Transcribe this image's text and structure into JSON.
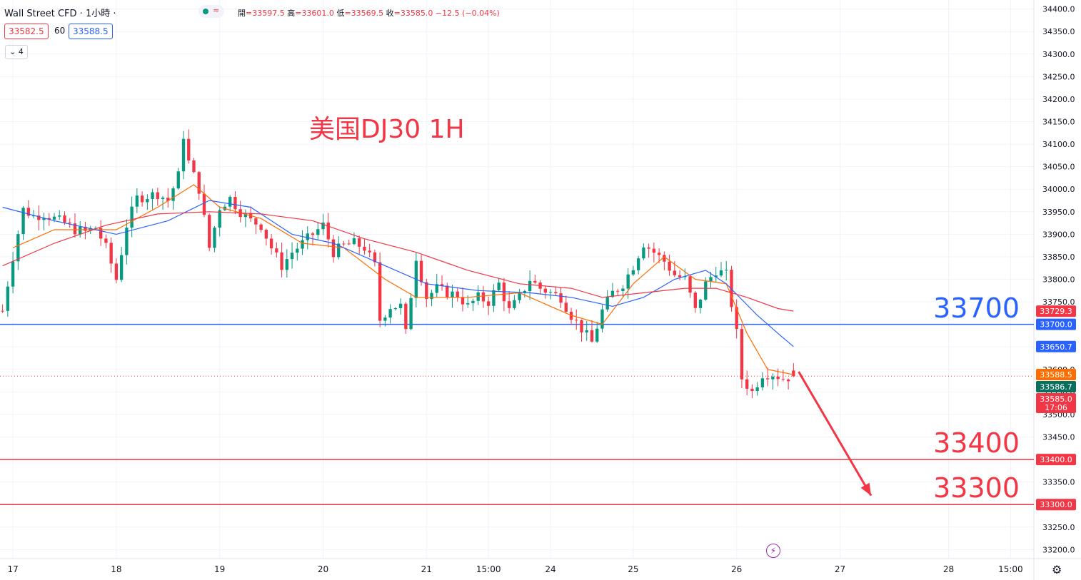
{
  "header": {
    "title": "Wall Street CFD · 1小時 ·",
    "status_glyph": "≈",
    "ohlc": [
      {
        "label": "開",
        "value": "=33597.5"
      },
      {
        "label": "高",
        "value": "=33601.0"
      },
      {
        "label": "低",
        "value": "=33569.5"
      },
      {
        "label": "收",
        "value": "=33585.0"
      }
    ],
    "change": "−12.5 (−0.04%)",
    "sell_price": "33582.5",
    "spread": "60",
    "buy_price": "33588.5",
    "indicator_count": "4"
  },
  "annotation": "美国DJ30 1H",
  "levels": [
    {
      "text": "33700",
      "value": 33700,
      "color": "#2962ff"
    },
    {
      "text": "33400",
      "value": 33400,
      "color": "#f23645"
    },
    {
      "text": "33300",
      "value": 33300,
      "color": "#f23645"
    }
  ],
  "chart_data": {
    "type": "candlestick",
    "symbol": "Wall Street CFD",
    "timeframe": "1小時",
    "ylim": [
      33180,
      34420
    ],
    "y_ticks": [
      33200,
      33250,
      33300,
      33350,
      33400,
      33450,
      33500,
      33550,
      33600,
      33650,
      33700,
      33750,
      33800,
      33850,
      33900,
      33950,
      34000,
      34050,
      34100,
      34150,
      34200,
      34250,
      34300,
      34350,
      34400
    ],
    "x_ticks": [
      {
        "label": "17",
        "t": 2
      },
      {
        "label": "18",
        "t": 22
      },
      {
        "label": "19",
        "t": 42
      },
      {
        "label": "20",
        "t": 62
      },
      {
        "label": "21",
        "t": 82
      },
      {
        "label": "15:00",
        "t": 94
      },
      {
        "label": "24",
        "t": 106
      },
      {
        "label": "25",
        "t": 122
      },
      {
        "label": "26",
        "t": 142
      },
      {
        "label": "27",
        "t": 162
      },
      {
        "label": "28",
        "t": 183
      },
      {
        "label": "15:00",
        "t": 195
      }
    ],
    "price_path": [
      [
        0,
        33730
      ],
      [
        2,
        33850
      ],
      [
        4,
        33955
      ],
      [
        6,
        33940
      ],
      [
        8,
        33945
      ],
      [
        10,
        33935
      ],
      [
        12,
        33925
      ],
      [
        14,
        33910
      ],
      [
        16,
        33905
      ],
      [
        18,
        33915
      ],
      [
        20,
        33870
      ],
      [
        22,
        33800
      ],
      [
        24,
        33920
      ],
      [
        26,
        33980
      ],
      [
        28,
        33985
      ],
      [
        30,
        33990
      ],
      [
        32,
        33975
      ],
      [
        34,
        34030
      ],
      [
        35,
        34120
      ],
      [
        36,
        34060
      ],
      [
        38,
        34000
      ],
      [
        40,
        33870
      ],
      [
        42,
        33960
      ],
      [
        44,
        33980
      ],
      [
        46,
        33950
      ],
      [
        48,
        33930
      ],
      [
        50,
        33920
      ],
      [
        52,
        33870
      ],
      [
        54,
        33830
      ],
      [
        56,
        33860
      ],
      [
        58,
        33880
      ],
      [
        60,
        33900
      ],
      [
        62,
        33920
      ],
      [
        64,
        33860
      ],
      [
        66,
        33875
      ],
      [
        68,
        33880
      ],
      [
        70,
        33870
      ],
      [
        72,
        33830
      ],
      [
        73,
        33710
      ],
      [
        75,
        33740
      ],
      [
        77,
        33740
      ],
      [
        78,
        33680
      ],
      [
        80,
        33850
      ],
      [
        82,
        33760
      ],
      [
        84,
        33780
      ],
      [
        86,
        33770
      ],
      [
        88,
        33765
      ],
      [
        90,
        33740
      ],
      [
        92,
        33760
      ],
      [
        94,
        33750
      ],
      [
        96,
        33790
      ],
      [
        98,
        33730
      ],
      [
        100,
        33760
      ],
      [
        102,
        33800
      ],
      [
        104,
        33780
      ],
      [
        106,
        33770
      ],
      [
        108,
        33760
      ],
      [
        110,
        33720
      ],
      [
        112,
        33690
      ],
      [
        114,
        33660
      ],
      [
        116,
        33730
      ],
      [
        118,
        33770
      ],
      [
        120,
        33790
      ],
      [
        122,
        33830
      ],
      [
        124,
        33880
      ],
      [
        126,
        33860
      ],
      [
        128,
        33840
      ],
      [
        130,
        33810
      ],
      [
        132,
        33800
      ],
      [
        134,
        33730
      ],
      [
        136,
        33790
      ],
      [
        138,
        33820
      ],
      [
        140,
        33810
      ],
      [
        142,
        33680
      ],
      [
        143,
        33580
      ],
      [
        145,
        33550
      ],
      [
        147,
        33590
      ],
      [
        149,
        33590
      ],
      [
        151,
        33580
      ],
      [
        153,
        33585
      ]
    ],
    "series": [
      {
        "name": "",
        "color": "#ff6d00",
        "values": [
          [
            2,
            33870
          ],
          [
            10,
            33910
          ],
          [
            22,
            33910
          ],
          [
            30,
            33960
          ],
          [
            37,
            34010
          ],
          [
            42,
            33960
          ],
          [
            50,
            33935
          ],
          [
            58,
            33880
          ],
          [
            66,
            33870
          ],
          [
            74,
            33800
          ],
          [
            80,
            33760
          ],
          [
            90,
            33760
          ],
          [
            100,
            33770
          ],
          [
            110,
            33720
          ],
          [
            116,
            33700
          ],
          [
            122,
            33790
          ],
          [
            128,
            33850
          ],
          [
            134,
            33800
          ],
          [
            140,
            33790
          ],
          [
            144,
            33680
          ],
          [
            148,
            33600
          ],
          [
            153,
            33588.5
          ]
        ]
      },
      {
        "name": "",
        "color": "#2962ff",
        "values": [
          [
            0,
            33960
          ],
          [
            10,
            33930
          ],
          [
            22,
            33900
          ],
          [
            32,
            33930
          ],
          [
            40,
            33975
          ],
          [
            48,
            33960
          ],
          [
            56,
            33900
          ],
          [
            64,
            33880
          ],
          [
            72,
            33840
          ],
          [
            82,
            33790
          ],
          [
            92,
            33775
          ],
          [
            102,
            33770
          ],
          [
            110,
            33760
          ],
          [
            118,
            33740
          ],
          [
            124,
            33760
          ],
          [
            130,
            33800
          ],
          [
            136,
            33820
          ],
          [
            140,
            33790
          ],
          [
            146,
            33720
          ],
          [
            150,
            33680
          ],
          [
            153,
            33650.7
          ]
        ]
      },
      {
        "name": "",
        "color": "#f23645",
        "values": [
          [
            0,
            33830
          ],
          [
            10,
            33880
          ],
          [
            20,
            33920
          ],
          [
            30,
            33945
          ],
          [
            40,
            33950
          ],
          [
            50,
            33945
          ],
          [
            60,
            33930
          ],
          [
            70,
            33890
          ],
          [
            80,
            33860
          ],
          [
            90,
            33820
          ],
          [
            100,
            33790
          ],
          [
            110,
            33780
          ],
          [
            116,
            33760
          ],
          [
            124,
            33770
          ],
          [
            132,
            33780
          ],
          [
            138,
            33780
          ],
          [
            144,
            33760
          ],
          [
            150,
            33735
          ],
          [
            153,
            33729.3
          ]
        ]
      }
    ],
    "price_labels": [
      {
        "text": "33729.3",
        "value": 33729.3,
        "color": "#f23645"
      },
      {
        "text": "33700.0",
        "value": 33700.0,
        "color": "#2962ff"
      },
      {
        "text": "33650.7",
        "value": 33650.7,
        "color": "#2962ff"
      },
      {
        "text": "33588.5",
        "value": 33588.5,
        "color": "#ff6d00"
      },
      {
        "text": "33586.7",
        "value": 33586.7,
        "color": "#0a6e5c"
      },
      {
        "text": "33585.0",
        "value": 33585.0,
        "color": "#f23645",
        "sub": "17:06"
      },
      {
        "text": "33400.0",
        "value": 33400.0,
        "color": "#f23645"
      },
      {
        "text": "33300.0",
        "value": 33300.0,
        "color": "#f23645"
      }
    ],
    "forecast_arrow": {
      "from": [
        154,
        33595
      ],
      "to": [
        168,
        33320
      ],
      "color": "#f23645"
    },
    "colors": {
      "up": "#089981",
      "down": "#f23645"
    }
  }
}
